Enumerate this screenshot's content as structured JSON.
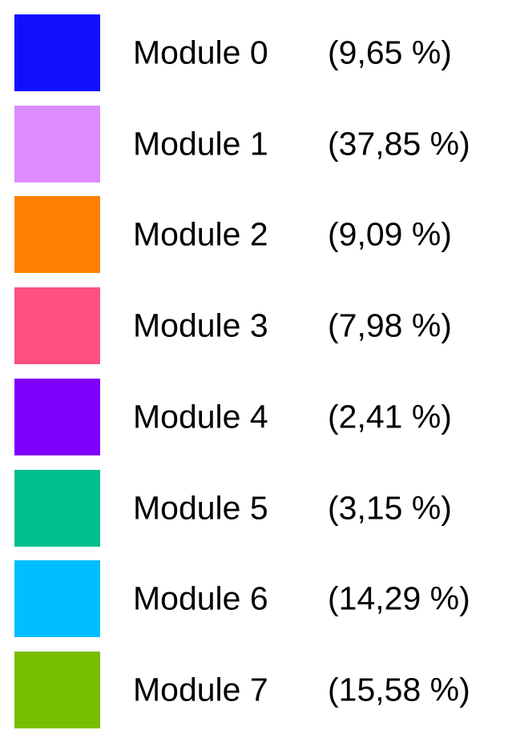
{
  "chart_data": {
    "type": "pie",
    "legend_placement": "full-panel",
    "entries": [
      {
        "label": "Module 0",
        "percent_label": "(9,65 %)",
        "value": 9.65,
        "color": "#1010FF"
      },
      {
        "label": "Module 1",
        "percent_label": "(37,85 %)",
        "value": 37.85,
        "color": "#DC8CFF"
      },
      {
        "label": "Module 2",
        "percent_label": "(9,09 %)",
        "value": 9.09,
        "color": "#FF8000"
      },
      {
        "label": "Module 3",
        "percent_label": "(7,98 %)",
        "value": 7.98,
        "color": "#FF5082"
      },
      {
        "label": "Module 4",
        "percent_label": "(2,41 %)",
        "value": 2.41,
        "color": "#8000FF"
      },
      {
        "label": "Module 5",
        "percent_label": "(3,15 %)",
        "value": 3.15,
        "color": "#00BE8C"
      },
      {
        "label": "Module 6",
        "percent_label": "(14,29 %)",
        "value": 14.29,
        "color": "#00BEFF"
      },
      {
        "label": "Module 7",
        "percent_label": "(15,58 %)",
        "value": 15.58,
        "color": "#78BE00"
      }
    ]
  }
}
